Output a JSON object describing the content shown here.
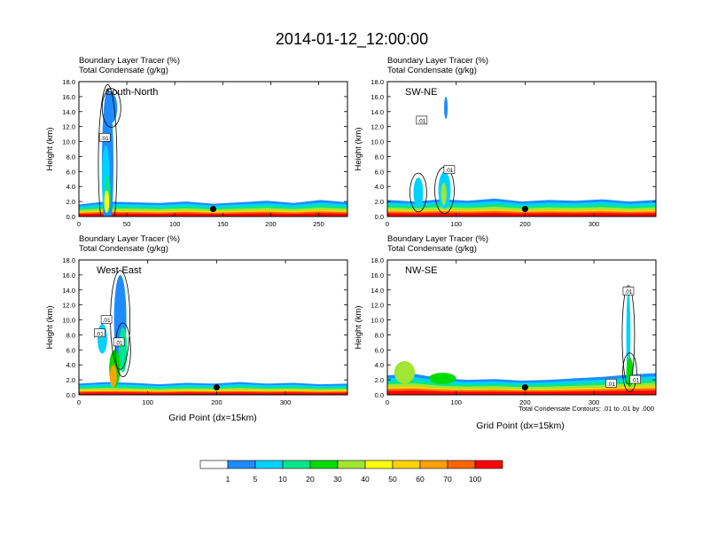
{
  "title": "2014-01-12_12:00:00",
  "panel_header": {
    "line1": "Boundary Layer Tracer   (%)",
    "line2": "Total Condensate   (g/kg)"
  },
  "ylabel": "Height (km)",
  "xlabel": "Grid Point (dx=15km)",
  "contour_note": "Total Condensate Contours: .01 to .01 by .000",
  "contour_label": ".01",
  "colorbar": {
    "levels": [
      "1",
      "5",
      "10",
      "20",
      "30",
      "40",
      "50",
      "60",
      "70",
      "100"
    ],
    "colors": [
      "#ffffff",
      "#1e8cff",
      "#00d2ff",
      "#00e68c",
      "#00dc00",
      "#a0e632",
      "#ffff00",
      "#ffd200",
      "#ffa000",
      "#ff6400",
      "#ff0000"
    ]
  },
  "chart_data": [
    {
      "type": "heatmap",
      "name": "South-North",
      "title": "South-North",
      "xlim": [
        0,
        280
      ],
      "ylim": [
        0,
        18
      ],
      "xticks": [
        0,
        50,
        100,
        150,
        200,
        250
      ],
      "yticks": [
        "0.0",
        "2.0",
        "4.0",
        "6.0",
        "8.0",
        "10.0",
        "12.0",
        "14.0",
        "16.0",
        "18.0"
      ],
      "marker_x": 140,
      "marker_y": 1.0,
      "contour_labels": [
        {
          "x": 27,
          "y": 10.5
        }
      ],
      "blobs": [
        {
          "x": 30,
          "y": 7,
          "w": 12,
          "h": 20,
          "level": 1
        },
        {
          "x": 34,
          "y": 14.5,
          "w": 12,
          "h": 4,
          "level": 1
        },
        {
          "x": 28,
          "y": 5,
          "w": 8,
          "h": 9,
          "level": 2
        },
        {
          "x": 30,
          "y": 3,
          "w": 6,
          "h": 5,
          "level": 3
        },
        {
          "x": 29,
          "y": 2,
          "w": 5,
          "h": 3,
          "level": 6
        }
      ],
      "bl_top": [
        1.6,
        2.0,
        1.9,
        1.8,
        2.0,
        1.7,
        1.9,
        2.1,
        1.8,
        2.2,
        1.9
      ]
    },
    {
      "type": "heatmap",
      "name": "SW-NE",
      "title": "SW-NE",
      "xlim": [
        0,
        390
      ],
      "ylim": [
        0,
        18
      ],
      "xticks": [
        0,
        100,
        200,
        300
      ],
      "yticks": [
        "0.0",
        "2.0",
        "4.0",
        "6.0",
        "8.0",
        "10.0",
        "12.0",
        "14.0",
        "16.0",
        "18.0"
      ],
      "marker_x": 200,
      "marker_y": 1.0,
      "contour_labels": [
        {
          "x": 50,
          "y": 12.8
        },
        {
          "x": 90,
          "y": 6.2
        }
      ],
      "blobs": [
        {
          "x": 83,
          "y": 3.5,
          "w": 18,
          "h": 5,
          "level": 2
        },
        {
          "x": 45,
          "y": 3.2,
          "w": 14,
          "h": 4,
          "level": 2
        },
        {
          "x": 85,
          "y": 14.5,
          "w": 5,
          "h": 3,
          "level": 1
        },
        {
          "x": 82,
          "y": 3,
          "w": 8,
          "h": 3,
          "level": 5
        }
      ],
      "bl_top": [
        2.2,
        2.0,
        2.3,
        2.1,
        2.4,
        2.0,
        2.2,
        2.1,
        2.3,
        2.0,
        2.2
      ]
    },
    {
      "type": "heatmap",
      "name": "West-East",
      "title": "West-East",
      "xlim": [
        0,
        390
      ],
      "ylim": [
        0,
        18
      ],
      "xticks": [
        0,
        100,
        200,
        300
      ],
      "yticks": [
        "0.0",
        "2.0",
        "4.0",
        "6.0",
        "8.0",
        "10.0",
        "12.0",
        "14.0",
        "16.0",
        "18.0"
      ],
      "marker_x": 200,
      "marker_y": 1.0,
      "contour_labels": [
        {
          "x": 40,
          "y": 10.0
        },
        {
          "x": 30,
          "y": 8.2
        },
        {
          "x": 58,
          "y": 7.0
        }
      ],
      "blobs": [
        {
          "x": 60,
          "y": 10,
          "w": 18,
          "h": 12,
          "level": 1
        },
        {
          "x": 64,
          "y": 6,
          "w": 12,
          "h": 6,
          "level": 3
        },
        {
          "x": 34,
          "y": 7.5,
          "w": 14,
          "h": 4,
          "level": 2
        },
        {
          "x": 52,
          "y": 3.5,
          "w": 16,
          "h": 5,
          "level": 4
        },
        {
          "x": 50,
          "y": 2.5,
          "w": 10,
          "h": 3,
          "level": 8
        }
      ],
      "bl_top": [
        1.5,
        1.7,
        1.6,
        1.4,
        1.6,
        1.5,
        1.7,
        1.5,
        1.6,
        1.4,
        1.5
      ]
    },
    {
      "type": "heatmap",
      "name": "NW-SE",
      "title": "NW-SE",
      "xlim": [
        0,
        390
      ],
      "ylim": [
        0,
        18
      ],
      "xticks": [
        0,
        100,
        200,
        300
      ],
      "yticks": [
        "0.0",
        "2.0",
        "4.0",
        "6.0",
        "8.0",
        "10.0",
        "12.0",
        "14.0",
        "16.0",
        "18.0"
      ],
      "marker_x": 200,
      "marker_y": 1.0,
      "contour_labels": [
        {
          "x": 350,
          "y": 13.8
        },
        {
          "x": 325,
          "y": 1.5
        },
        {
          "x": 360,
          "y": 2.0
        }
      ],
      "blobs": [
        {
          "x": 350,
          "y": 8,
          "w": 6,
          "h": 12,
          "level": 2
        },
        {
          "x": 352,
          "y": 3,
          "w": 10,
          "h": 4,
          "level": 4
        },
        {
          "x": 25,
          "y": 3,
          "w": 30,
          "h": 3,
          "level": 5
        },
        {
          "x": 80,
          "y": 2.2,
          "w": 40,
          "h": 1.5,
          "level": 4
        }
      ],
      "bl_top": [
        2.6,
        2.8,
        2.2,
        2.0,
        2.1,
        1.9,
        2.0,
        2.2,
        2.4,
        2.7,
        2.9
      ]
    }
  ]
}
